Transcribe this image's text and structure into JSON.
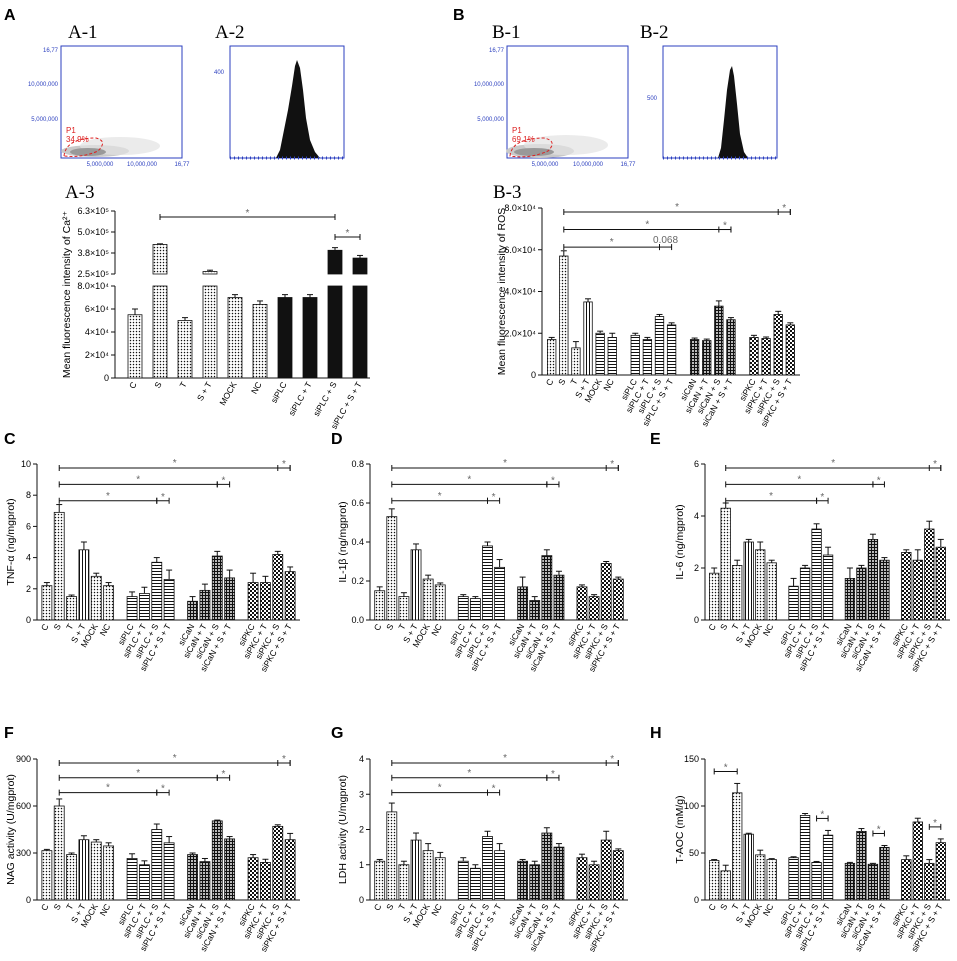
{
  "labels": {
    "panel_A": "A",
    "panel_B": "B",
    "panel_C": "C",
    "panel_D": "D",
    "panel_E": "E",
    "panel_F": "F",
    "panel_G": "G",
    "panel_H": "H",
    "A1": "A-1",
    "A2": "A-2",
    "A3": "A-3",
    "B1": "B-1",
    "B2": "B-2",
    "B3": "B-3"
  },
  "flow": {
    "A1": {
      "ymax": "16,77",
      "ymid": "10,000,000",
      "ylow": "5,000,000",
      "x1": "5,000,000",
      "x2": "10,000,000",
      "x3": "16,77",
      "gate_name": "P1",
      "gate_pct": "34.9%",
      "hist_y": "400"
    },
    "B1": {
      "ymax": "16,77",
      "ymid": "10,000,000",
      "ylow": "5,000,000",
      "x1": "5,000,000",
      "x2": "10,000,000",
      "x3": "16,77",
      "gate_name": "P1",
      "gate_pct": "69.1%",
      "hist_y": "500"
    }
  },
  "colors": {
    "axis": "#111111",
    "star": "#666666",
    "flow_axis": "#2b3fbf",
    "gate": "#dd2222",
    "solid": "#111111"
  },
  "chart_data": [
    {
      "id": "A3",
      "type": "bar",
      "title": "",
      "xlabel": "",
      "ylabel": "Mean fluorescence intensity of Ca²⁺",
      "broken_axis": true,
      "lower_ylim": [
        0,
        80000
      ],
      "upper_ylim": [
        250000,
        630000
      ],
      "lower_ticks": [
        "0",
        "2×10⁴",
        "4×10⁴",
        "6×10⁴",
        "8.0×10⁴"
      ],
      "upper_ticks": [
        "2.5×10⁵",
        "3.8×10⁵",
        "5.0×10⁵",
        "6.3×10⁵"
      ],
      "categories": [
        "C",
        "S",
        "T",
        "S + T",
        "MOCK",
        "NC",
        "siPLC",
        "siPLC + T",
        "siPLC + S",
        "siPLC + S + T"
      ],
      "values": [
        55000,
        428000,
        50000,
        265000,
        70000,
        64000,
        70000,
        70000,
        393000,
        346000
      ],
      "errors": [
        5000,
        4000,
        2500,
        8000,
        2500,
        3000,
        2500,
        2500,
        16000,
        16000
      ],
      "fills": [
        "dots",
        "dots",
        "dots",
        "dots",
        "dots",
        "dots",
        "solid",
        "solid",
        "solid",
        "solid"
      ],
      "significance": [
        {
          "from": 1,
          "to": 8,
          "label": "*"
        },
        {
          "from": 8,
          "to": 9,
          "label": "*"
        }
      ]
    },
    {
      "id": "B3",
      "type": "bar",
      "title": "",
      "xlabel": "",
      "ylabel": "Mean fluorescence intensity of ROS",
      "ylim": [
        0,
        80000
      ],
      "yticks": [
        "0",
        "2.0×10⁴",
        "4.0×10⁴",
        "6.0×10⁴",
        "8.0×10⁴"
      ],
      "categories": [
        "C",
        "S",
        "T",
        "S + T",
        "MOCK",
        "NC",
        "siPLC",
        "siPLC + T",
        "siPLC + S",
        "siPLC + S + T",
        "siCaN",
        "siCaN + T",
        "siCaN + S",
        "siCaN + S + T",
        "siPKC",
        "siPKC + T",
        "siPKC + S",
        "siPKC + S + T"
      ],
      "values": [
        17000,
        57000,
        13000,
        35000,
        20000,
        18000,
        19000,
        17000,
        28000,
        24000,
        17000,
        16500,
        33000,
        26500,
        18000,
        17500,
        29000,
        24000
      ],
      "errors": [
        1000,
        2500,
        3000,
        1500,
        1000,
        2000,
        1000,
        1000,
        1000,
        1000,
        700,
        700,
        2500,
        1000,
        1000,
        700,
        1500,
        1000
      ],
      "fills": [
        "dots",
        "dots",
        "dots",
        "vert",
        "hatch",
        "hatch",
        "hatch",
        "hatch",
        "hatch",
        "hatch",
        "cross",
        "cross",
        "cross",
        "cross",
        "check",
        "check",
        "check",
        "check"
      ],
      "significance": [
        {
          "from": 1,
          "to": 17,
          "label": "*"
        },
        {
          "from": 1,
          "to": 13,
          "label": "*"
        },
        {
          "from": 1,
          "to": 8,
          "label": "*"
        },
        {
          "from": 16,
          "to": 17,
          "label": "*"
        },
        {
          "from": 12,
          "to": 13,
          "label": "*"
        },
        {
          "from": 8,
          "to": 9,
          "label": "0.068"
        }
      ]
    },
    {
      "id": "C",
      "type": "bar",
      "ylabel": "TNF-α (ng/mgprot)",
      "ylim": [
        0,
        10
      ],
      "yticks": [
        "0",
        "2",
        "4",
        "6",
        "8",
        "10"
      ],
      "categories": [
        "C",
        "S",
        "T",
        "S + T",
        "MOCK",
        "NC",
        "siPLC",
        "siPLC + T",
        "siPLC + S",
        "siPLC + S + T",
        "siCaN",
        "siCaN + T",
        "siCaN + S",
        "siCaN + S + T",
        "siPKC",
        "siPKC + T",
        "siPKC + S",
        "siPKC + S + T"
      ],
      "values": [
        2.2,
        6.9,
        1.5,
        4.5,
        2.8,
        2.2,
        1.5,
        1.7,
        3.7,
        2.6,
        1.2,
        1.9,
        4.1,
        2.7,
        2.4,
        2.4,
        4.2,
        3.1
      ],
      "errors": [
        0.2,
        0.5,
        0.1,
        0.5,
        0.2,
        0.2,
        0.3,
        0.4,
        0.3,
        0.6,
        0.3,
        0.4,
        0.3,
        0.5,
        0.6,
        0.4,
        0.2,
        0.3
      ],
      "significance": [
        {
          "from": 1,
          "to": 17,
          "label": "*"
        },
        {
          "from": 1,
          "to": 12,
          "label": "*"
        },
        {
          "from": 1,
          "to": 8,
          "label": "*"
        },
        {
          "from": 16,
          "to": 17,
          "label": "*"
        },
        {
          "from": 12,
          "to": 13,
          "label": "*"
        },
        {
          "from": 8,
          "to": 9,
          "label": "*"
        }
      ]
    },
    {
      "id": "D",
      "type": "bar",
      "ylabel": "IL-1β (ng/mgprot)",
      "ylim": [
        0,
        0.8
      ],
      "yticks": [
        "0.0",
        "0.2",
        "0.4",
        "0.6",
        "0.8"
      ],
      "categories": [
        "C",
        "S",
        "T",
        "S + T",
        "MOCK",
        "NC",
        "siPLC",
        "siPLC + T",
        "siPLC + S",
        "siPLC + S + T",
        "siCaN",
        "siCaN + T",
        "siCaN + S",
        "siCaN + S + T",
        "siPKC",
        "siPKC + T",
        "siPKC + S",
        "siPKC + S + T"
      ],
      "values": [
        0.15,
        0.53,
        0.12,
        0.36,
        0.21,
        0.18,
        0.12,
        0.11,
        0.38,
        0.27,
        0.17,
        0.1,
        0.33,
        0.23,
        0.17,
        0.12,
        0.29,
        0.21
      ],
      "errors": [
        0.02,
        0.04,
        0.02,
        0.03,
        0.02,
        0.01,
        0.01,
        0.01,
        0.02,
        0.04,
        0.05,
        0.02,
        0.03,
        0.02,
        0.01,
        0.01,
        0.01,
        0.01
      ],
      "significance": [
        {
          "from": 1,
          "to": 17,
          "label": "*"
        },
        {
          "from": 1,
          "to": 12,
          "label": "*"
        },
        {
          "from": 1,
          "to": 8,
          "label": "*"
        },
        {
          "from": 16,
          "to": 17,
          "label": "*"
        },
        {
          "from": 12,
          "to": 13,
          "label": "*"
        },
        {
          "from": 8,
          "to": 9,
          "label": "*"
        }
      ]
    },
    {
      "id": "E",
      "type": "bar",
      "ylabel": "IL-6 (ng/mgprot)",
      "ylim": [
        0,
        6
      ],
      "yticks": [
        "0",
        "2",
        "4",
        "6"
      ],
      "categories": [
        "C",
        "S",
        "T",
        "S + T",
        "MOCK",
        "NC",
        "siPLC",
        "siPLC + T",
        "siPLC + S",
        "siPLC + S + T",
        "siCaN",
        "siCaN + T",
        "siCaN + S",
        "siCaN + S + T",
        "siPKC",
        "siPKC + T",
        "siPKC + S",
        "siPKC + S + T"
      ],
      "values": [
        1.8,
        4.3,
        2.1,
        3.0,
        2.7,
        2.2,
        1.3,
        2.0,
        3.5,
        2.5,
        1.6,
        2.0,
        3.1,
        2.3,
        2.6,
        2.3,
        3.5,
        2.8
      ],
      "errors": [
        0.2,
        0.2,
        0.2,
        0.1,
        0.3,
        0.1,
        0.3,
        0.1,
        0.2,
        0.3,
        0.4,
        0.1,
        0.2,
        0.1,
        0.1,
        0.4,
        0.3,
        0.3
      ],
      "significance": [
        {
          "from": 1,
          "to": 17,
          "label": "*"
        },
        {
          "from": 1,
          "to": 12,
          "label": "*"
        },
        {
          "from": 1,
          "to": 8,
          "label": "*"
        },
        {
          "from": 16,
          "to": 17,
          "label": "*"
        },
        {
          "from": 12,
          "to": 13,
          "label": "*"
        },
        {
          "from": 8,
          "to": 9,
          "label": "*"
        }
      ]
    },
    {
      "id": "F",
      "type": "bar",
      "ylabel": "NAG activity (U/mgprot)",
      "ylim": [
        0,
        900
      ],
      "yticks": [
        "0",
        "300",
        "600",
        "900"
      ],
      "categories": [
        "C",
        "S",
        "T",
        "S + T",
        "MOCK",
        "NC",
        "siPLC",
        "siPLC + T",
        "siPLC + S",
        "siPLC + S + T",
        "siCaN",
        "siCaN + T",
        "siCaN + S",
        "siCaN + S + T",
        "siPKC",
        "siPKC + T",
        "siPKC + S",
        "siPKC + S + T"
      ],
      "values": [
        315,
        600,
        290,
        385,
        370,
        345,
        265,
        225,
        450,
        365,
        290,
        245,
        505,
        390,
        270,
        240,
        470,
        385
      ],
      "errors": [
        8,
        45,
        10,
        25,
        15,
        20,
        30,
        25,
        35,
        40,
        10,
        20,
        5,
        15,
        20,
        20,
        10,
        40
      ],
      "significance": [
        {
          "from": 1,
          "to": 17,
          "label": "*"
        },
        {
          "from": 1,
          "to": 12,
          "label": "*"
        },
        {
          "from": 1,
          "to": 8,
          "label": "*"
        },
        {
          "from": 16,
          "to": 17,
          "label": "*"
        },
        {
          "from": 12,
          "to": 13,
          "label": "*"
        },
        {
          "from": 8,
          "to": 9,
          "label": "*"
        }
      ]
    },
    {
      "id": "G",
      "type": "bar",
      "ylabel": "LDH activity (U/mgprot)",
      "ylim": [
        0,
        4
      ],
      "yticks": [
        "0",
        "1",
        "2",
        "3",
        "4"
      ],
      "categories": [
        "C",
        "S",
        "T",
        "S + T",
        "MOCK",
        "NC",
        "siPLC",
        "siPLC + T",
        "siPLC + S",
        "siPLC + S + T",
        "siCaN",
        "siCaN + T",
        "siCaN + S",
        "siCaN + S + T",
        "siPKC",
        "siPKC + T",
        "siPKC + S",
        "siPKC + S + T"
      ],
      "values": [
        1.1,
        2.5,
        1.0,
        1.7,
        1.4,
        1.2,
        1.1,
        0.9,
        1.8,
        1.4,
        1.1,
        1.0,
        1.9,
        1.5,
        1.2,
        1.0,
        1.7,
        1.4
      ],
      "errors": [
        0.05,
        0.25,
        0.1,
        0.2,
        0.2,
        0.15,
        0.1,
        0.1,
        0.15,
        0.2,
        0.05,
        0.1,
        0.15,
        0.1,
        0.1,
        0.1,
        0.25,
        0.05
      ],
      "significance": [
        {
          "from": 1,
          "to": 17,
          "label": "*"
        },
        {
          "from": 1,
          "to": 12,
          "label": "*"
        },
        {
          "from": 1,
          "to": 8,
          "label": "*"
        },
        {
          "from": 16,
          "to": 17,
          "label": "*"
        },
        {
          "from": 12,
          "to": 13,
          "label": "*"
        },
        {
          "from": 8,
          "to": 9,
          "label": "*"
        }
      ]
    },
    {
      "id": "H",
      "type": "bar",
      "ylabel": "T-AOC (mM/g)",
      "ylim": [
        0,
        150
      ],
      "yticks": [
        "0",
        "50",
        "100",
        "150"
      ],
      "categories": [
        "C",
        "S",
        "T",
        "S + T",
        "MOCK",
        "NC",
        "siPLC",
        "siPLC + T",
        "siPLC + S",
        "siPLC + S + T",
        "siCaN",
        "siCaN + T",
        "siCaN + S",
        "siCaN + S + T",
        "siPKC",
        "siPKC + T",
        "siPKC + S",
        "siPKC + S + T"
      ],
      "values": [
        42,
        31,
        114,
        70,
        48,
        43,
        45,
        90,
        40,
        69,
        39,
        73,
        38,
        56,
        43,
        83,
        39,
        61
      ],
      "errors": [
        1,
        6,
        10,
        1,
        5,
        1,
        1,
        2,
        1,
        5,
        1,
        3,
        1,
        2,
        4,
        4,
        4,
        4
      ],
      "significance": [
        {
          "from": 0,
          "to": 2,
          "label": "*"
        },
        {
          "from": 8,
          "to": 9,
          "label": "*"
        },
        {
          "from": 12,
          "to": 13,
          "label": "*"
        },
        {
          "from": 16,
          "to": 17,
          "label": "*"
        }
      ]
    }
  ]
}
